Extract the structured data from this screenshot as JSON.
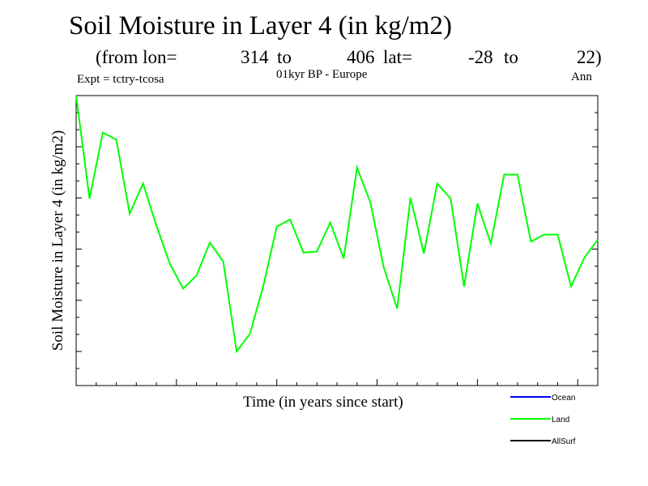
{
  "header": {
    "title": "Soil Moisture in Layer 4 (in kg/m2)",
    "sub_from": "(from lon=",
    "lon_start": "314",
    "to1": "to",
    "lon_end": "406",
    "lat_label": "lat=",
    "lat_start": "-28",
    "to2": "to",
    "lat_end": "22)",
    "expt": "Expt = tctry-tcosa",
    "period": "01kyr BP - Europe",
    "season": "Ann"
  },
  "chart_data": {
    "type": "line",
    "title": "Soil Moisture in Layer 4 (in kg/m2)",
    "xlabel": "Time (in years since start)",
    "ylabel": "Soil Moisture in Layer 4 (in kg/m2)",
    "xlim": [
      0,
      39
    ],
    "ylim": [
      0,
      29
    ],
    "grid": false,
    "legend_position": "bottom-right",
    "series": [
      {
        "name": "Land",
        "color": "#00ff00",
        "x": [
          0,
          1,
          2,
          3,
          4,
          5,
          6,
          7,
          8,
          9,
          10,
          11,
          12,
          13,
          14,
          15,
          16,
          17,
          18,
          19,
          20,
          21,
          22,
          23,
          24,
          25,
          26,
          27,
          28,
          29,
          30,
          31,
          32,
          33,
          34,
          35,
          36,
          37,
          38,
          39
        ],
        "values": [
          29.0,
          18.7,
          25.3,
          24.6,
          17.2,
          20.2,
          16.0,
          12.2,
          9.7,
          11.0,
          14.3,
          12.4,
          3.4,
          5.2,
          10.0,
          15.9,
          16.6,
          13.3,
          13.4,
          16.3,
          12.7,
          21.8,
          18.3,
          11.8,
          7.7,
          18.8,
          13.2,
          20.2,
          18.7,
          9.9,
          18.2,
          14.2,
          21.1,
          21.1,
          14.4,
          15.1,
          15.1,
          9.9,
          12.8,
          14.6
        ]
      },
      {
        "name": "Ocean",
        "color": "#0000ff",
        "values": []
      },
      {
        "name": "AllSurf",
        "color": "#000000",
        "values": []
      }
    ],
    "legend": [
      "Ocean",
      "Land",
      "AllSurf"
    ]
  }
}
